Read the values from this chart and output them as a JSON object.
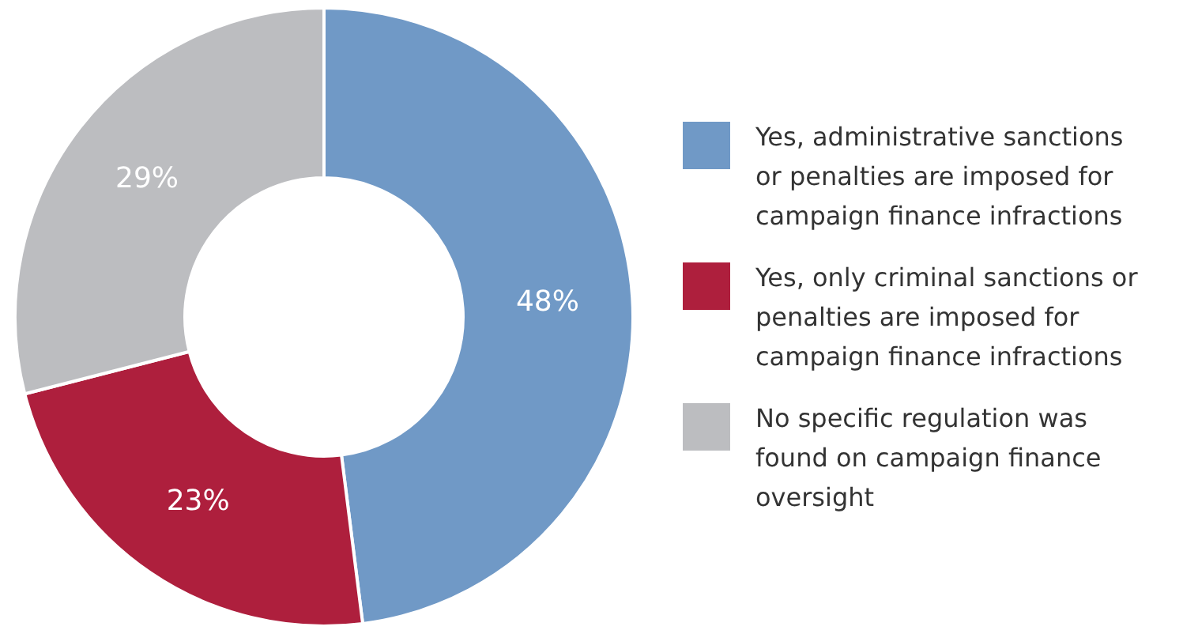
{
  "chart_data": {
    "type": "donut",
    "categories": [
      "Yes, administrative sanctions or penalties are imposed for campaign finance infractions",
      "Yes, only criminal sanctions or penalties are imposed for campaign finance infractions",
      "No specific regulation was found on campaign finance oversight"
    ],
    "values": [
      48,
      23,
      29
    ],
    "value_labels": [
      "48%",
      "23%",
      "29%"
    ],
    "colors": [
      "#7099c6",
      "#ae1f3d",
      "#bcbdc0"
    ],
    "legend": "right"
  }
}
